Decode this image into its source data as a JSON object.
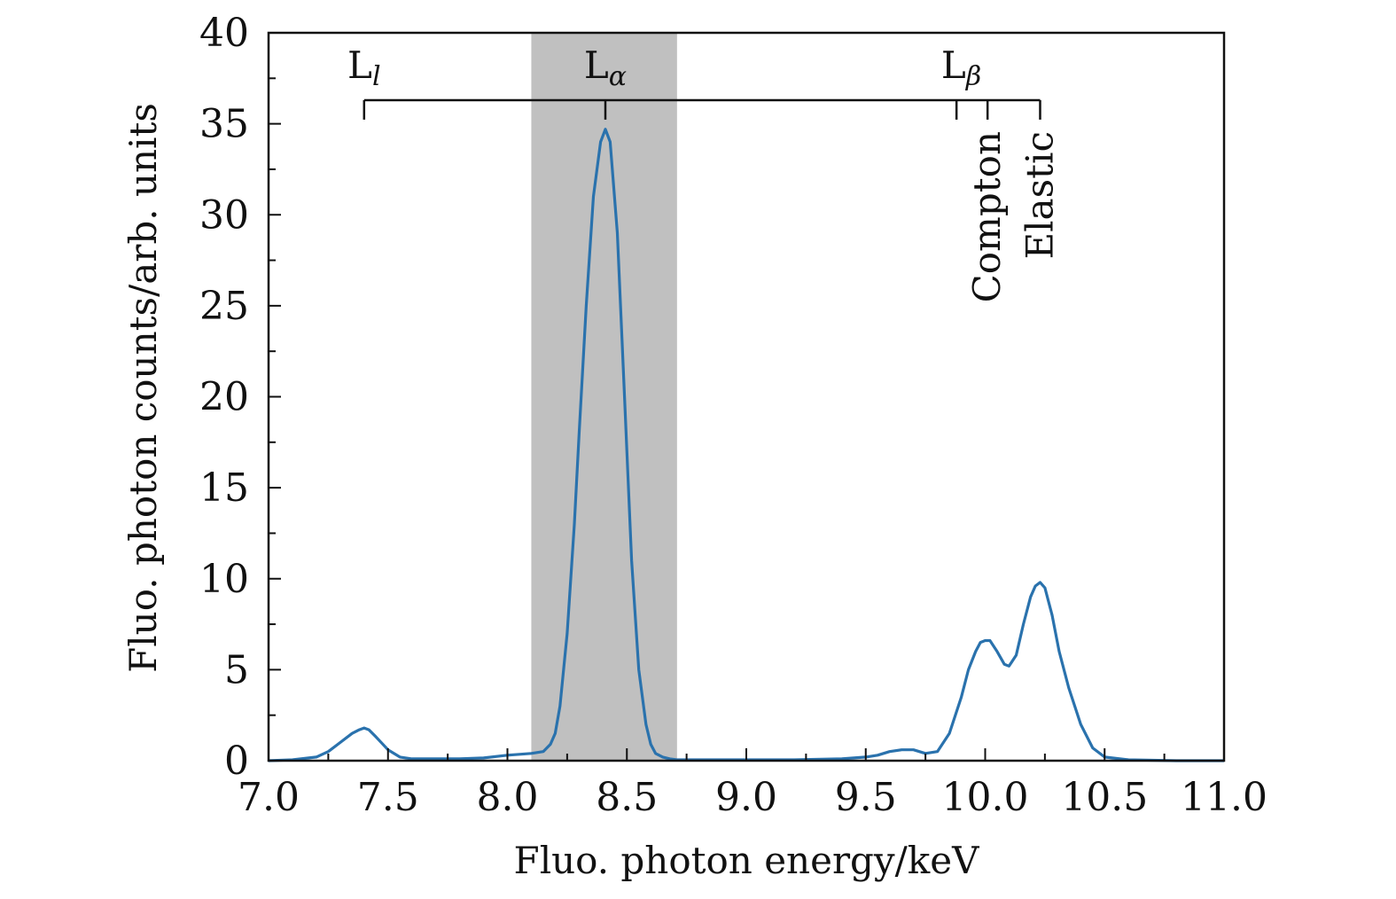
{
  "chart_data": {
    "type": "line",
    "xlabel": "Fluo. photon energy/keV",
    "ylabel": "Fluo. photon counts/arb. units",
    "xlim": [
      7.0,
      11.0
    ],
    "ylim": [
      0,
      40
    ],
    "x_ticks": [
      "7.0",
      "7.5",
      "8.0",
      "8.5",
      "9.0",
      "9.5",
      "10.0",
      "10.5",
      "11.0"
    ],
    "y_ticks": [
      "0",
      "5",
      "10",
      "15",
      "20",
      "25",
      "30",
      "35",
      "40"
    ],
    "grid": false,
    "line_color": "#2a72ad",
    "shaded_region": {
      "x": [
        8.1,
        8.71
      ],
      "color": "#c0c0c0"
    },
    "peak_labels": [
      {
        "main": "L",
        "sub": "l",
        "x": 7.4
      },
      {
        "main": "L",
        "sub": "α",
        "x": 8.41
      },
      {
        "main": "L",
        "sub": "β",
        "x": 9.9
      }
    ],
    "vertical_labels": [
      {
        "text": "Compton",
        "x": 10.01
      },
      {
        "text": "Elastic",
        "x": 10.23
      }
    ],
    "bracket": {
      "y": 36.3,
      "ticks_x": [
        7.4,
        8.41,
        9.88,
        10.01,
        10.23
      ]
    },
    "series": [
      {
        "x": [
          7.0,
          7.1,
          7.2,
          7.25,
          7.3,
          7.35,
          7.38,
          7.4,
          7.42,
          7.45,
          7.5,
          7.55,
          7.6,
          7.7,
          7.8,
          7.9,
          8.0,
          8.05,
          8.1,
          8.15,
          8.18,
          8.2,
          8.22,
          8.25,
          8.28,
          8.3,
          8.33,
          8.36,
          8.39,
          8.41,
          8.43,
          8.46,
          8.49,
          8.52,
          8.55,
          8.58,
          8.6,
          8.62,
          8.65,
          8.68,
          8.71,
          8.8,
          9.0,
          9.2,
          9.4,
          9.5,
          9.55,
          9.6,
          9.65,
          9.7,
          9.75,
          9.8,
          9.85,
          9.9,
          9.93,
          9.96,
          9.98,
          10.0,
          10.02,
          10.05,
          10.08,
          10.1,
          10.13,
          10.16,
          10.19,
          10.21,
          10.23,
          10.25,
          10.28,
          10.31,
          10.35,
          10.4,
          10.45,
          10.5,
          10.6,
          10.8,
          11.0
        ],
        "y": [
          0.0,
          0.05,
          0.2,
          0.5,
          1.0,
          1.5,
          1.7,
          1.8,
          1.7,
          1.3,
          0.6,
          0.2,
          0.1,
          0.1,
          0.1,
          0.15,
          0.3,
          0.35,
          0.4,
          0.5,
          0.9,
          1.5,
          3.0,
          7.0,
          13.0,
          18.0,
          25.0,
          31.0,
          34.0,
          34.7,
          34.0,
          29.0,
          20.0,
          11.0,
          5.0,
          2.0,
          0.9,
          0.4,
          0.2,
          0.1,
          0.05,
          0.05,
          0.05,
          0.05,
          0.1,
          0.2,
          0.3,
          0.5,
          0.6,
          0.6,
          0.4,
          0.5,
          1.5,
          3.5,
          5.0,
          6.0,
          6.5,
          6.6,
          6.6,
          6.0,
          5.3,
          5.2,
          5.8,
          7.5,
          9.0,
          9.6,
          9.8,
          9.5,
          8.0,
          6.0,
          4.0,
          2.0,
          0.7,
          0.2,
          0.05,
          0.0,
          0.0
        ]
      }
    ]
  }
}
